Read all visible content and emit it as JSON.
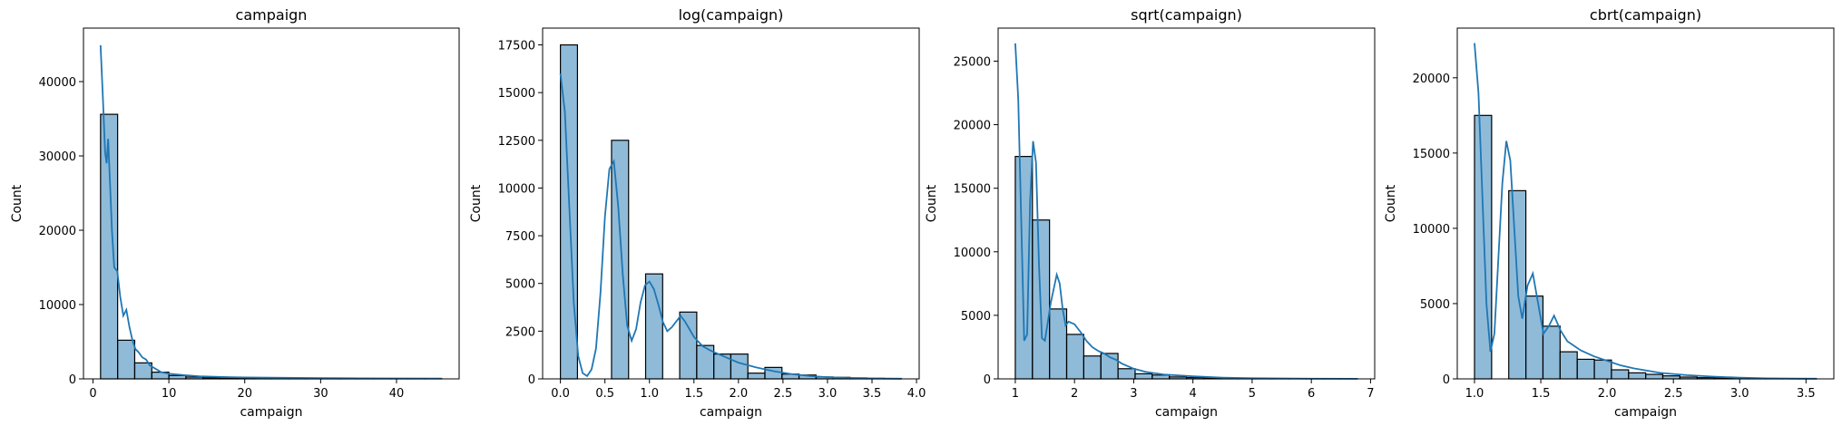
{
  "chart_data": [
    {
      "type": "histogram",
      "title": "campaign",
      "xlabel": "campaign",
      "ylabel": "Count",
      "xlim": [
        -1.25,
        48.25
      ],
      "ylim": [
        0,
        47200
      ],
      "xticks": [
        0,
        10,
        20,
        30,
        40
      ],
      "xtick_labels": [
        "0",
        "10",
        "20",
        "30",
        "40"
      ],
      "yticks": [
        0,
        10000,
        20000,
        30000,
        40000
      ],
      "ytick_labels": [
        "0",
        "10000",
        "20000",
        "30000",
        "40000"
      ],
      "bin_edges": [
        1,
        3.25,
        5.5,
        7.75,
        10,
        12.25,
        14.5,
        16.75,
        19,
        21.25,
        23.5,
        25.75,
        28,
        30.25,
        32.5,
        34.75,
        37,
        39.25,
        41.5,
        43.75,
        46
      ],
      "counts": [
        35600,
        5200,
        2150,
        900,
        450,
        250,
        150,
        100,
        60,
        40,
        30,
        20,
        15,
        10,
        8,
        5,
        5,
        3,
        2,
        2
      ],
      "kde_x": [
        1,
        1.3,
        1.6,
        1.8,
        2.0,
        2.2,
        2.5,
        2.8,
        3.2,
        3.6,
        4.0,
        4.4,
        4.8,
        5.2,
        5.6,
        6.0,
        6.5,
        7.0,
        7.5,
        8.0,
        9.0,
        10,
        12,
        14,
        17,
        20,
        25,
        30,
        35,
        40,
        46
      ],
      "kde_y": [
        44900,
        38000,
        30500,
        29000,
        32300,
        27500,
        20000,
        15000,
        14500,
        11000,
        8500,
        9300,
        7000,
        5200,
        4000,
        3600,
        2900,
        2600,
        1800,
        1500,
        900,
        700,
        500,
        350,
        250,
        200,
        150,
        100,
        80,
        60,
        50
      ],
      "color": "#1f77b4"
    },
    {
      "type": "histogram",
      "title": "log(campaign)",
      "xlabel": "campaign",
      "ylabel": "Count",
      "xlim": [
        -0.2,
        4.03
      ],
      "ylim": [
        0,
        18380
      ],
      "xticks": [
        0,
        0.5,
        1,
        1.5,
        2,
        2.5,
        3,
        3.5,
        4
      ],
      "xtick_labels": [
        "0.0",
        "0.5",
        "1.0",
        "1.5",
        "2.0",
        "2.5",
        "3.0",
        "3.5",
        "4.0"
      ],
      "yticks": [
        0,
        2500,
        5000,
        7500,
        10000,
        12500,
        15000,
        17500
      ],
      "ytick_labels": [
        "0",
        "2500",
        "5000",
        "7500",
        "10000",
        "12500",
        "15000",
        "17500"
      ],
      "bin_edges": [
        0,
        0.1914,
        0.3828,
        0.5743,
        0.7657,
        0.9571,
        1.1485,
        1.3399,
        1.5314,
        1.7228,
        1.9142,
        2.1056,
        2.297,
        2.4885,
        2.6799,
        2.8713,
        3.0627,
        3.2541,
        3.4456,
        3.637,
        3.8284
      ],
      "counts": [
        17500,
        0,
        0,
        12500,
        0,
        5500,
        0,
        3500,
        1750,
        1300,
        1300,
        300,
        600,
        250,
        200,
        100,
        80,
        50,
        30,
        20
      ],
      "kde_x": [
        0,
        0.05,
        0.1,
        0.15,
        0.2,
        0.25,
        0.3,
        0.35,
        0.4,
        0.45,
        0.5,
        0.55,
        0.6,
        0.65,
        0.7,
        0.75,
        0.8,
        0.85,
        0.9,
        0.95,
        1.0,
        1.05,
        1.1,
        1.15,
        1.2,
        1.25,
        1.3,
        1.35,
        1.4,
        1.45,
        1.5,
        1.6,
        1.7,
        1.8,
        1.9,
        2.0,
        2.2,
        2.4,
        2.6,
        2.8,
        3.0,
        3.2,
        3.5,
        3.83
      ],
      "kde_y": [
        16000,
        14000,
        9000,
        4000,
        1200,
        300,
        150,
        500,
        1600,
        4500,
        8500,
        11000,
        11400,
        9000,
        5500,
        2800,
        2000,
        2600,
        4000,
        4900,
        5100,
        4700,
        3900,
        3000,
        2500,
        2700,
        3000,
        3300,
        3000,
        2600,
        2200,
        1700,
        1450,
        1250,
        1050,
        850,
        600,
        400,
        250,
        150,
        90,
        50,
        25,
        10
      ],
      "color": "#1f77b4"
    },
    {
      "type": "histogram",
      "title": "sqrt(campaign)",
      "xlabel": "campaign",
      "ylabel": "Count",
      "xlim": [
        0.71,
        7.07
      ],
      "ylim": [
        0,
        27600
      ],
      "xticks": [
        1,
        2,
        3,
        4,
        5,
        6,
        7
      ],
      "xtick_labels": [
        "1",
        "2",
        "3",
        "4",
        "5",
        "6",
        "7"
      ],
      "yticks": [
        0,
        5000,
        10000,
        15000,
        20000,
        25000
      ],
      "ytick_labels": [
        "0",
        "5000",
        "10000",
        "15000",
        "20000",
        "25000"
      ],
      "bin_edges": [
        1,
        1.2891,
        1.5782,
        1.8673,
        2.1564,
        2.4455,
        2.7346,
        3.0237,
        3.3128,
        3.6019,
        3.891,
        4.1801,
        4.4692,
        4.7583,
        5.0474,
        5.3365,
        5.6256,
        5.9147,
        6.2038,
        6.4929,
        6.782
      ],
      "counts": [
        17500,
        12500,
        5500,
        3500,
        1800,
        2000,
        800,
        400,
        300,
        150,
        100,
        60,
        40,
        25,
        15,
        10,
        8,
        5,
        3,
        2
      ],
      "kde_x": [
        1,
        1.05,
        1.1,
        1.15,
        1.2,
        1.25,
        1.3,
        1.35,
        1.4,
        1.45,
        1.5,
        1.6,
        1.7,
        1.75,
        1.8,
        1.85,
        1.9,
        2.0,
        2.1,
        2.2,
        2.3,
        2.4,
        2.5,
        2.6,
        2.7,
        2.8,
        3.0,
        3.2,
        3.5,
        4.0,
        4.5,
        5.0,
        6.0,
        6.78
      ],
      "kde_y": [
        26400,
        22000,
        12500,
        3000,
        3500,
        14000,
        18700,
        17000,
        9000,
        3200,
        3000,
        6000,
        8200,
        7500,
        5500,
        4200,
        4500,
        4300,
        3700,
        3000,
        2500,
        2200,
        2000,
        1700,
        1500,
        1200,
        800,
        550,
        350,
        200,
        100,
        50,
        20,
        10
      ],
      "color": "#1f77b4"
    },
    {
      "type": "histogram",
      "title": "cbrt(campaign)",
      "xlabel": "campaign",
      "ylabel": "Count",
      "xlim": [
        0.87,
        3.71
      ],
      "ylim": [
        0,
        23300
      ],
      "xticks": [
        1,
        1.5,
        2,
        2.5,
        3,
        3.5
      ],
      "xtick_labels": [
        "1.0",
        "1.5",
        "2.0",
        "2.5",
        "3.0",
        "3.5"
      ],
      "yticks": [
        0,
        5000,
        10000,
        15000,
        20000
      ],
      "ytick_labels": [
        "0",
        "5000",
        "10000",
        "15000",
        "20000"
      ],
      "bin_edges": [
        1,
        1.1291,
        1.2582,
        1.3873,
        1.5164,
        1.6455,
        1.7746,
        1.9037,
        2.0328,
        2.1619,
        2.291,
        2.4201,
        2.5492,
        2.6783,
        2.8074,
        2.9365,
        3.0656,
        3.1947,
        3.3238,
        3.4529,
        3.582
      ],
      "counts": [
        17500,
        0,
        12500,
        5500,
        3500,
        1800,
        1300,
        1250,
        600,
        400,
        300,
        200,
        120,
        80,
        50,
        30,
        20,
        10,
        5,
        3
      ],
      "kde_x": [
        1,
        1.03,
        1.06,
        1.09,
        1.12,
        1.15,
        1.18,
        1.21,
        1.24,
        1.27,
        1.3,
        1.33,
        1.36,
        1.4,
        1.44,
        1.48,
        1.52,
        1.56,
        1.6,
        1.65,
        1.7,
        1.8,
        1.9,
        2.0,
        2.1,
        2.2,
        2.4,
        2.6,
        2.8,
        3.0,
        3.2,
        3.4,
        3.58
      ],
      "kde_y": [
        22300,
        19000,
        12000,
        5000,
        1800,
        3000,
        8000,
        13000,
        15800,
        14500,
        10000,
        5500,
        4000,
        6200,
        7000,
        5000,
        3000,
        3500,
        4200,
        3200,
        2500,
        1900,
        1500,
        1200,
        900,
        700,
        400,
        250,
        150,
        80,
        40,
        20,
        10
      ],
      "color": "#1f77b4"
    }
  ]
}
